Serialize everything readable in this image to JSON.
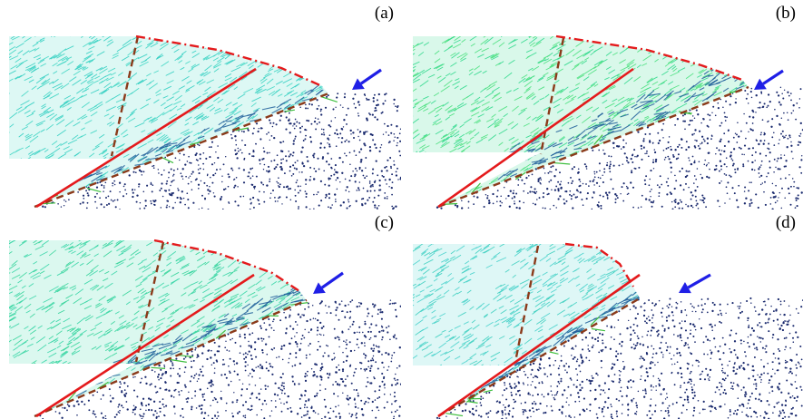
{
  "panels": [
    {
      "label": "(a)",
      "field_color": "#40d6c4",
      "field_accent": "#33cfc2",
      "shear_density": 0.5,
      "shear_extent": 0.25
    },
    {
      "label": "(b)",
      "field_color": "#2fd98c",
      "field_accent": "#4ae07e",
      "shear_density": 1.0,
      "shear_extent": 0.7
    },
    {
      "label": "(c)",
      "field_color": "#38d6a8",
      "field_accent": "#35d49a",
      "shear_density": 0.8,
      "shear_extent": 0.45
    },
    {
      "label": "(d)",
      "field_color": "#48d2cc",
      "field_accent": "#3fd0c0",
      "shear_density": 0.5,
      "shear_extent": 0.15
    }
  ],
  "colors": {
    "soil_dots": "#1a2a6e",
    "failure_plane": "#e41a1c",
    "boundary_dashed": "#8b3a1a",
    "free_surface": "#e41a1c",
    "arrow": "#1f1fe6",
    "shear_lines": "#1f5f9a",
    "outlier_lines": "#3fbf3f"
  }
}
